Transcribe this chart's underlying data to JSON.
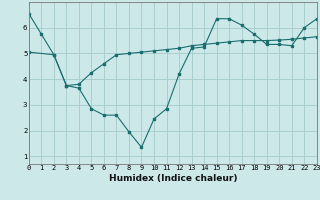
{
  "xlabel": "Humidex (Indice chaleur)",
  "background_color": "#cce8e8",
  "grid_color": "#aacece",
  "line_color": "#1a6e6e",
  "x_line1": [
    0,
    1,
    2,
    3,
    4,
    5,
    6,
    7,
    8,
    9,
    10,
    11,
    12,
    13,
    14,
    15,
    16,
    17,
    18,
    19,
    20,
    21,
    22,
    23
  ],
  "y_line1": [
    6.55,
    5.75,
    4.95,
    3.75,
    3.65,
    2.85,
    2.6,
    2.6,
    1.95,
    1.35,
    2.45,
    2.85,
    4.2,
    5.2,
    5.25,
    6.35,
    6.35,
    6.1,
    5.75,
    5.35,
    5.35,
    5.3,
    6.0,
    6.35
  ],
  "x_line2": [
    0,
    2,
    3,
    4,
    5,
    6,
    7,
    8,
    9,
    10,
    11,
    12,
    13,
    14,
    15,
    16,
    17,
    18,
    19,
    20,
    21,
    22,
    23
  ],
  "y_line2": [
    5.05,
    4.95,
    3.75,
    3.8,
    4.25,
    4.6,
    4.95,
    5.0,
    5.05,
    5.1,
    5.15,
    5.2,
    5.3,
    5.35,
    5.4,
    5.45,
    5.5,
    5.5,
    5.5,
    5.52,
    5.55,
    5.6,
    5.65
  ],
  "xlim": [
    0,
    23
  ],
  "ylim": [
    0.7,
    7.0
  ],
  "yticks": [
    1,
    2,
    3,
    4,
    5,
    6
  ],
  "xlabel_fontsize": 6.5,
  "tick_fontsize": 5.0
}
